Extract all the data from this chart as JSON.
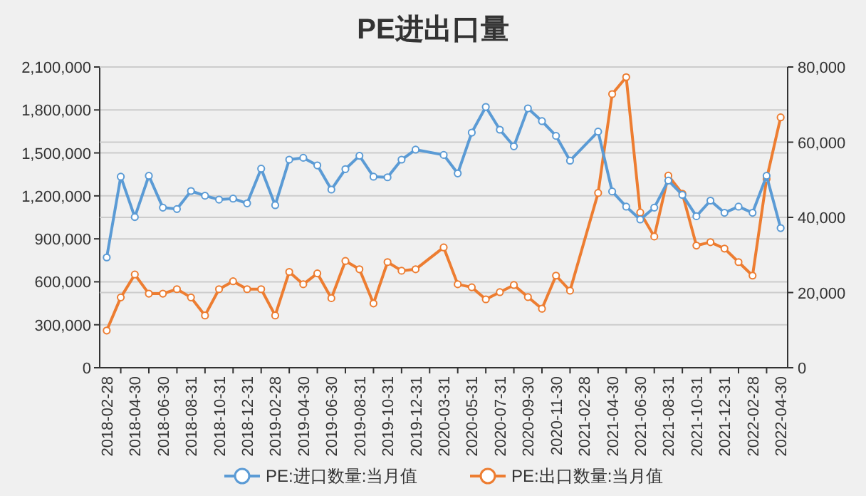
{
  "chart_data": {
    "type": "line",
    "title": "PE进出口量",
    "categories": [
      "2018-02-28",
      null,
      "2018-04-30",
      null,
      "2018-06-30",
      null,
      "2018-08-31",
      null,
      "2018-10-31",
      null,
      "2018-12-31",
      null,
      "2019-02-28",
      null,
      "2019-04-30",
      null,
      "2019-06-30",
      null,
      "2019-08-31",
      null,
      "2019-10-31",
      null,
      "2019-12-31",
      null,
      "2020-03-31",
      null,
      "2020-05-31",
      null,
      "2020-07-31",
      null,
      "2020-09-30",
      null,
      "2020-11-30",
      null,
      "2021-02-28",
      null,
      "2021-04-30",
      null,
      "2021-06-30",
      null,
      "2021-08-31",
      null,
      "2021-10-31",
      null,
      "2021-12-31",
      null,
      "2022-02-28",
      null,
      "2022-04-30"
    ],
    "series": [
      {
        "name": "PE:进口数量:当月值",
        "color": "#5b9bd5",
        "axis": "y",
        "values": [
          770000,
          1334000,
          1052000,
          1340000,
          1118000,
          1108000,
          1234000,
          1201000,
          1174000,
          1181000,
          1148000,
          1390000,
          1135000,
          1453000,
          1466000,
          1413000,
          1244000,
          1387000,
          1480000,
          1334000,
          1330000,
          1453000,
          1523000,
          null,
          1486000,
          1357000,
          1642000,
          1821000,
          1662000,
          1546000,
          1811000,
          1722000,
          1619000,
          1446000,
          null,
          1649000,
          1231000,
          1125000,
          1035000,
          1118000,
          1307000,
          1207000,
          1058000,
          1167000,
          1082000,
          1125000,
          1082000,
          1340000,
          975000
        ]
      },
      {
        "name": "PE:出口数量:当月值",
        "color": "#ed7d31",
        "axis": "y2",
        "values": [
          9900,
          18700,
          24800,
          19700,
          19700,
          20900,
          18700,
          13900,
          20900,
          23000,
          20900,
          20900,
          13900,
          25500,
          22200,
          25100,
          18500,
          28400,
          26200,
          17100,
          28100,
          25800,
          26200,
          null,
          32000,
          22200,
          21400,
          18200,
          20100,
          22000,
          18800,
          15700,
          24500,
          20500,
          null,
          46500,
          72800,
          77300,
          41300,
          34900,
          51100,
          46300,
          32500,
          33400,
          31700,
          28100,
          24500,
          50200,
          66600
        ]
      }
    ],
    "ylim": [
      0,
      2100000
    ],
    "yticks": [
      0,
      {
        "value": 300000,
        "label": "300,000"
      },
      {
        "value": 600000,
        "label": "600,000"
      },
      {
        "value": 900000,
        "label": "900,000"
      },
      {
        "value": 1200000,
        "label": "1,200,000"
      },
      {
        "value": 1500000,
        "label": "1,500,000"
      },
      {
        "value": 1800000,
        "label": "1,800,000"
      },
      {
        "value": 2100000,
        "label": "2,100,000"
      }
    ],
    "y2lim": [
      0,
      80000
    ],
    "y2ticks": [
      0,
      {
        "value": 20000,
        "label": "20,000"
      },
      {
        "value": 40000,
        "label": "40,000"
      },
      {
        "value": 60000,
        "label": "60,000"
      },
      {
        "value": 80000,
        "label": "80,000"
      }
    ],
    "grid": "y",
    "legend": "bottom",
    "marker": "circle"
  }
}
